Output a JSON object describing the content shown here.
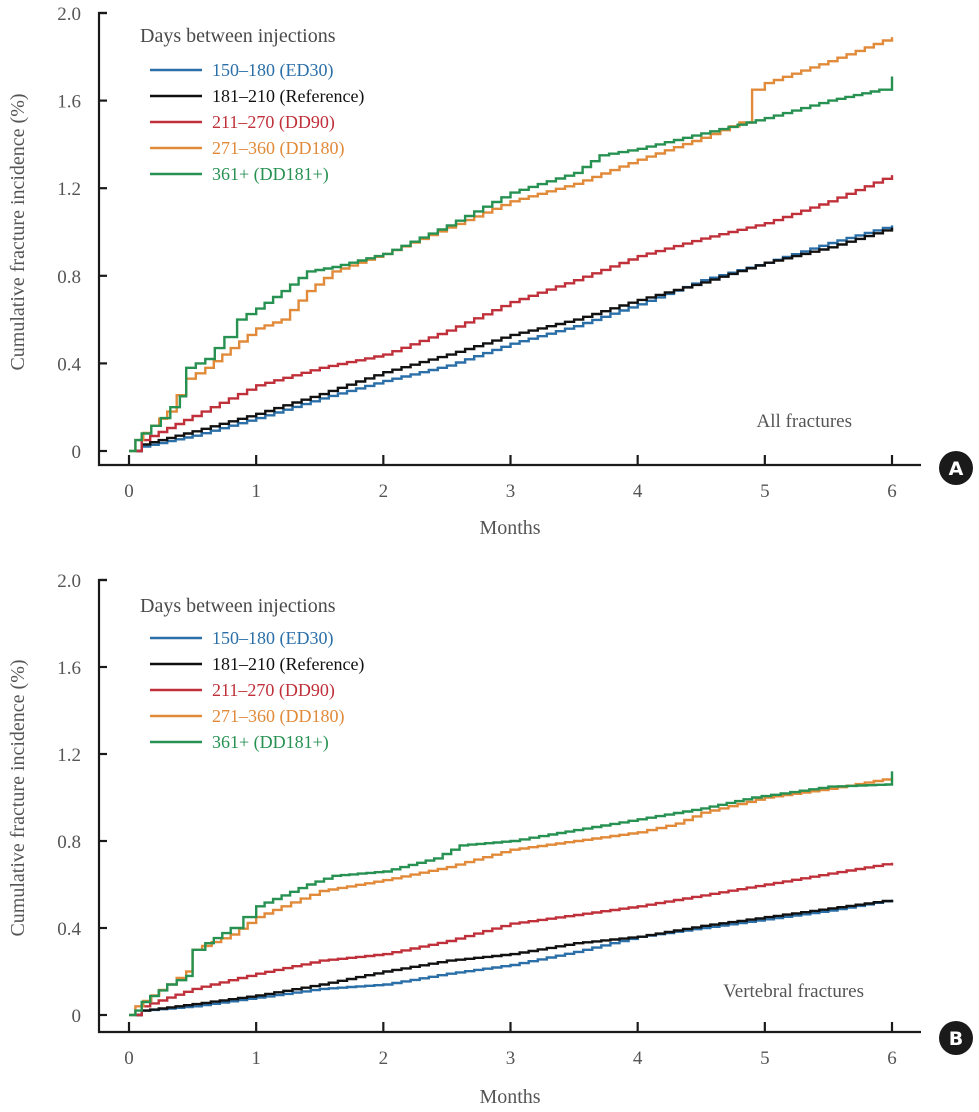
{
  "chart_data": [
    {
      "panel": "A",
      "type": "line",
      "step": true,
      "note": "All fractures",
      "xlabel": "Months",
      "ylabel": "Cumulative fracture incidence (%)",
      "xlim": [
        0,
        6
      ],
      "ylim": [
        0,
        2.0
      ],
      "xticks": [
        "0",
        "1",
        "2",
        "3",
        "4",
        "5",
        "6"
      ],
      "yticks": [
        "0",
        "0.4",
        "0.8",
        "1.2",
        "1.6",
        "2.0"
      ],
      "xtick_values": [
        0,
        1,
        2,
        3,
        4,
        5,
        6
      ],
      "ytick_values": [
        0,
        0.4,
        0.8,
        1.2,
        1.6,
        2.0
      ],
      "legend_title": "Days between injections",
      "legend_position": "top-left",
      "series": [
        {
          "name": "150–180 (ED30)",
          "color": "#2b6fa8",
          "x": [
            0.05,
            0.1,
            0.5,
            1.0,
            1.5,
            2.0,
            2.5,
            3.0,
            3.5,
            4.0,
            4.5,
            5.0,
            5.5,
            6.0
          ],
          "y": [
            0,
            0.02,
            0.07,
            0.15,
            0.24,
            0.32,
            0.39,
            0.49,
            0.57,
            0.67,
            0.78,
            0.86,
            0.95,
            1.03
          ]
        },
        {
          "name": "181–210 (Reference)",
          "color": "#111111",
          "x": [
            0.05,
            0.1,
            0.5,
            1.0,
            1.5,
            2.0,
            2.5,
            3.0,
            3.5,
            4.0,
            4.5,
            5.0,
            5.5,
            6.0
          ],
          "y": [
            0,
            0.03,
            0.09,
            0.17,
            0.26,
            0.36,
            0.44,
            0.53,
            0.6,
            0.69,
            0.77,
            0.86,
            0.93,
            1.02
          ]
        },
        {
          "name": "211–270 (DD90)",
          "color": "#c0303a",
          "x": [
            0.05,
            0.1,
            0.5,
            1.0,
            1.5,
            2.0,
            2.5,
            3.0,
            3.5,
            4.0,
            4.5,
            5.0,
            5.5,
            6.0
          ],
          "y": [
            0,
            0.05,
            0.16,
            0.3,
            0.38,
            0.44,
            0.55,
            0.68,
            0.78,
            0.89,
            0.97,
            1.04,
            1.14,
            1.26
          ]
        },
        {
          "name": "271–360 (DD180)",
          "color": "#e08a3a",
          "x": [
            0.0,
            0.05,
            0.3,
            0.45,
            0.6,
            0.8,
            1.0,
            1.2,
            1.4,
            1.6,
            1.8,
            2.0,
            2.5,
            3.0,
            3.5,
            4.0,
            4.5,
            4.8,
            4.9,
            5.0,
            5.5,
            6.0
          ],
          "y": [
            0,
            0.05,
            0.18,
            0.33,
            0.38,
            0.47,
            0.56,
            0.6,
            0.73,
            0.82,
            0.86,
            0.9,
            1.02,
            1.14,
            1.22,
            1.33,
            1.43,
            1.5,
            1.65,
            1.68,
            1.78,
            1.89
          ]
        },
        {
          "name": "361+ (DD181+)",
          "color": "#279152",
          "x": [
            0.0,
            0.05,
            0.1,
            0.25,
            0.4,
            0.45,
            0.6,
            0.75,
            0.85,
            1.0,
            1.2,
            1.4,
            1.6,
            2.0,
            2.5,
            3.0,
            3.5,
            3.7,
            4.0,
            4.5,
            5.0,
            5.5,
            5.9,
            6.0
          ],
          "y": [
            0,
            0.05,
            0.08,
            0.15,
            0.25,
            0.38,
            0.42,
            0.52,
            0.6,
            0.65,
            0.73,
            0.82,
            0.84,
            0.9,
            1.03,
            1.18,
            1.27,
            1.35,
            1.38,
            1.45,
            1.52,
            1.6,
            1.65,
            1.71
          ]
        }
      ]
    },
    {
      "panel": "B",
      "type": "line",
      "step": true,
      "note": "Vertebral fractures",
      "xlabel": "Months",
      "ylabel": "Cumulative fracture incidence (%)",
      "xlim": [
        0,
        6
      ],
      "ylim": [
        0,
        2.0
      ],
      "xticks": [
        "0",
        "1",
        "2",
        "3",
        "4",
        "5",
        "6"
      ],
      "yticks": [
        "0",
        "0.4",
        "0.8",
        "1.2",
        "1.6",
        "2.0"
      ],
      "xtick_values": [
        0,
        1,
        2,
        3,
        4,
        5,
        6
      ],
      "ytick_values": [
        0,
        0.4,
        0.8,
        1.2,
        1.6,
        2.0
      ],
      "legend_title": "Days between injections",
      "legend_position": "top-left",
      "series": [
        {
          "name": "150–180 (ED30)",
          "color": "#2b6fa8",
          "x": [
            0.05,
            0.1,
            0.5,
            1.0,
            1.5,
            2.0,
            2.5,
            3.0,
            3.5,
            4.0,
            4.5,
            5.0,
            5.5,
            6.0
          ],
          "y": [
            0,
            0.02,
            0.04,
            0.08,
            0.12,
            0.14,
            0.19,
            0.23,
            0.29,
            0.36,
            0.4,
            0.44,
            0.48,
            0.53
          ]
        },
        {
          "name": "181–210 (Reference)",
          "color": "#111111",
          "x": [
            0.05,
            0.1,
            0.5,
            1.0,
            1.5,
            2.0,
            2.5,
            3.0,
            3.5,
            4.0,
            4.5,
            5.0,
            5.5,
            6.0
          ],
          "y": [
            0,
            0.02,
            0.05,
            0.09,
            0.14,
            0.2,
            0.25,
            0.28,
            0.33,
            0.36,
            0.41,
            0.45,
            0.49,
            0.53
          ]
        },
        {
          "name": "211–270 (DD90)",
          "color": "#c0303a",
          "x": [
            0.05,
            0.1,
            0.5,
            1.0,
            1.5,
            2.0,
            2.5,
            3.0,
            3.5,
            4.0,
            4.5,
            5.0,
            5.5,
            6.0
          ],
          "y": [
            0,
            0.04,
            0.12,
            0.19,
            0.25,
            0.28,
            0.34,
            0.42,
            0.46,
            0.5,
            0.55,
            0.6,
            0.65,
            0.7
          ]
        },
        {
          "name": "271–360 (DD180)",
          "color": "#e08a3a",
          "x": [
            0.0,
            0.05,
            0.3,
            0.45,
            0.5,
            0.8,
            1.0,
            1.2,
            1.5,
            2.0,
            2.5,
            3.0,
            3.5,
            4.0,
            4.3,
            4.5,
            5.0,
            5.5,
            6.0
          ],
          "y": [
            0,
            0.04,
            0.14,
            0.2,
            0.3,
            0.37,
            0.45,
            0.5,
            0.57,
            0.62,
            0.68,
            0.76,
            0.8,
            0.84,
            0.88,
            0.93,
            1.0,
            1.04,
            1.09
          ]
        },
        {
          "name": "361+ (DD181+)",
          "color": "#279152",
          "x": [
            0.0,
            0.05,
            0.1,
            0.3,
            0.45,
            0.5,
            0.6,
            0.8,
            0.9,
            1.0,
            1.2,
            1.4,
            1.6,
            2.0,
            2.4,
            2.6,
            3.0,
            3.3,
            3.5,
            4.0,
            4.5,
            4.9,
            5.5,
            5.95,
            6.0
          ],
          "y": [
            0,
            0.02,
            0.06,
            0.14,
            0.18,
            0.3,
            0.33,
            0.4,
            0.45,
            0.5,
            0.55,
            0.6,
            0.64,
            0.66,
            0.72,
            0.78,
            0.8,
            0.83,
            0.85,
            0.9,
            0.95,
            1.0,
            1.05,
            1.06,
            1.12
          ]
        }
      ]
    }
  ]
}
